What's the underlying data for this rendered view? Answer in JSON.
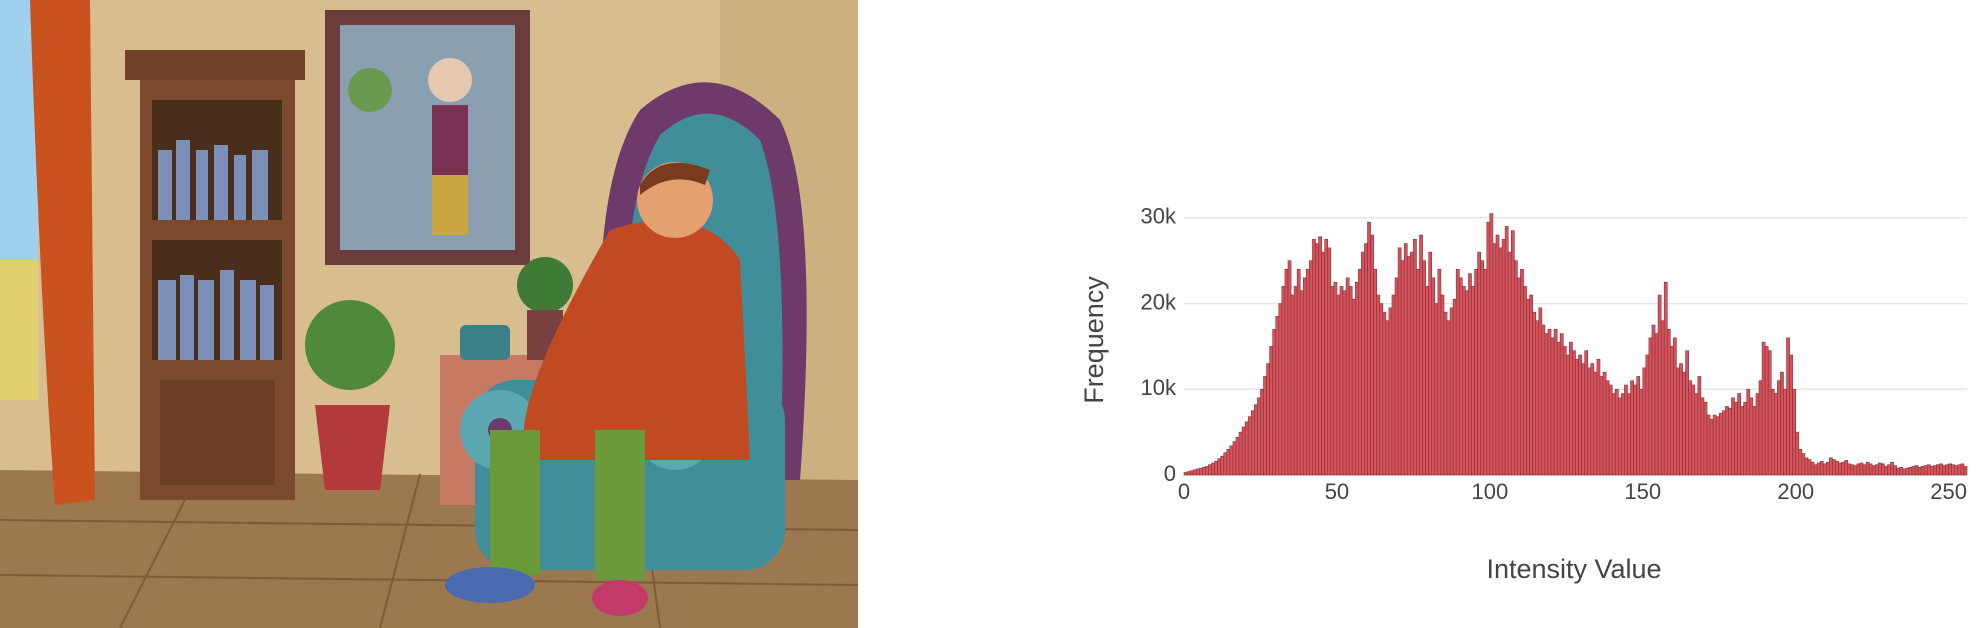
{
  "chart_data": {
    "type": "histogram",
    "xlabel": "Intensity Value",
    "ylabel": "Frequency",
    "bins": [
      0,
      1,
      2,
      3,
      4,
      5,
      6,
      7,
      8,
      9,
      10,
      11,
      12,
      13,
      14,
      15,
      16,
      17,
      18,
      19,
      20,
      21,
      22,
      23,
      24,
      25,
      26,
      27,
      28,
      29,
      30,
      31,
      32,
      33,
      34,
      35,
      36,
      37,
      38,
      39,
      40,
      41,
      42,
      43,
      44,
      45,
      46,
      47,
      48,
      49,
      50,
      51,
      52,
      53,
      54,
      55,
      56,
      57,
      58,
      59,
      60,
      61,
      62,
      63,
      64,
      65,
      66,
      67,
      68,
      69,
      70,
      71,
      72,
      73,
      74,
      75,
      76,
      77,
      78,
      79,
      80,
      81,
      82,
      83,
      84,
      85,
      86,
      87,
      88,
      89,
      90,
      91,
      92,
      93,
      94,
      95,
      96,
      97,
      98,
      99,
      100,
      101,
      102,
      103,
      104,
      105,
      106,
      107,
      108,
      109,
      110,
      111,
      112,
      113,
      114,
      115,
      116,
      117,
      118,
      119,
      120,
      121,
      122,
      123,
      124,
      125,
      126,
      127,
      128,
      129,
      130,
      131,
      132,
      133,
      134,
      135,
      136,
      137,
      138,
      139,
      140,
      141,
      142,
      143,
      144,
      145,
      146,
      147,
      148,
      149,
      150,
      151,
      152,
      153,
      154,
      155,
      156,
      157,
      158,
      159,
      160,
      161,
      162,
      163,
      164,
      165,
      166,
      167,
      168,
      169,
      170,
      171,
      172,
      173,
      174,
      175,
      176,
      177,
      178,
      179,
      180,
      181,
      182,
      183,
      184,
      185,
      186,
      187,
      188,
      189,
      190,
      191,
      192,
      193,
      194,
      195,
      196,
      197,
      198,
      199,
      200,
      201,
      202,
      203,
      204,
      205,
      206,
      207,
      208,
      209,
      210,
      211,
      212,
      213,
      214,
      215,
      216,
      217,
      218,
      219,
      220,
      221,
      222,
      223,
      224,
      225,
      226,
      227,
      228,
      229,
      230,
      231,
      232,
      233,
      234,
      235,
      236,
      237,
      238,
      239,
      240,
      241,
      242,
      243,
      244,
      245,
      246,
      247,
      248,
      249,
      250,
      251,
      252,
      253,
      254,
      255,
      256
    ],
    "values": [
      300,
      400,
      500,
      600,
      700,
      800,
      900,
      1000,
      1200,
      1400,
      1600,
      1900,
      2200,
      2600,
      3000,
      3400,
      3900,
      4400,
      5000,
      5600,
      6200,
      6800,
      7500,
      8200,
      9000,
      10000,
      11500,
      13000,
      15000,
      17000,
      18500,
      20000,
      22000,
      24000,
      25000,
      21000,
      22000,
      24000,
      21500,
      23000,
      24000,
      25000,
      27500,
      27000,
      27800,
      26000,
      27500,
      26500,
      22000,
      22500,
      21000,
      22000,
      21500,
      23000,
      22000,
      20500,
      22500,
      24000,
      26000,
      27000,
      29500,
      28000,
      24000,
      21000,
      20000,
      19000,
      18000,
      19500,
      21000,
      23000,
      26500,
      25000,
      27000,
      25500,
      26000,
      27500,
      24000,
      28000,
      25000,
      22000,
      26000,
      23000,
      20000,
      24000,
      21000,
      19000,
      18000,
      19500,
      20500,
      24000,
      23000,
      22000,
      21500,
      23500,
      22000,
      24000,
      26000,
      25000,
      24000,
      29500,
      30500,
      27000,
      28000,
      26500,
      27500,
      29000,
      26000,
      28500,
      25000,
      23000,
      24000,
      22000,
      20500,
      21000,
      19000,
      18000,
      19500,
      17500,
      16500,
      17000,
      16000,
      17000,
      15500,
      16500,
      15000,
      14000,
      15500,
      14500,
      13500,
      14000,
      13000,
      14500,
      12500,
      13000,
      12000,
      13500,
      11500,
      12000,
      11000,
      10500,
      9500,
      10000,
      9000,
      9500,
      10500,
      9500,
      11000,
      10500,
      11500,
      10000,
      12500,
      14000,
      16000,
      17500,
      16500,
      21000,
      18000,
      22500,
      17000,
      15000,
      16000,
      12500,
      13000,
      12000,
      14500,
      11000,
      10500,
      9500,
      11500,
      9000,
      8500,
      7000,
      6500,
      7000,
      6800,
      7200,
      7500,
      8000,
      7800,
      9000,
      8500,
      9500,
      8000,
      8500,
      10000,
      9000,
      8000,
      9500,
      11000,
      15500,
      15000,
      14500,
      10000,
      9500,
      11000,
      12000,
      10000,
      16000,
      14000,
      10000,
      5000,
      3000,
      2500,
      2000,
      1800,
      1500,
      1200,
      1400,
      1600,
      1300,
      1500,
      2000,
      1800,
      1600,
      1400,
      1500,
      1700,
      1300,
      1200,
      1100,
      1300,
      1400,
      1200,
      1500,
      1300,
      1100,
      1200,
      1400,
      1300,
      1000,
      1200,
      1500,
      1100,
      800,
      900,
      700,
      800,
      900,
      1000,
      1100,
      900,
      1000,
      1100,
      1200,
      1000,
      1100,
      1200,
      1300,
      1100,
      1200,
      1300,
      1200,
      1100,
      1200,
      1300,
      1000
    ],
    "color": "#d4545e",
    "edgecolor": "#8e2c34",
    "xlim": [
      0,
      256
    ],
    "xticks": [
      0,
      50,
      100,
      150,
      200,
      250
    ],
    "ylim": [
      0,
      31500
    ],
    "yticks": [
      0,
      {
        "value": 10000,
        "label": "10k"
      },
      {
        "value": 20000,
        "label": "20k"
      },
      {
        "value": 30000,
        "label": "30k"
      }
    ],
    "grid": true
  }
}
